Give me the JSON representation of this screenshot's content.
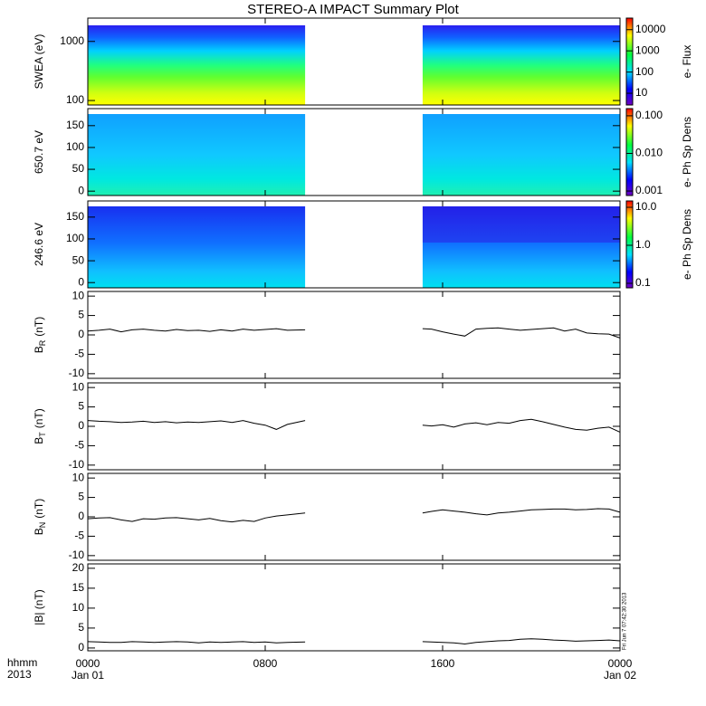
{
  "title": "STEREO-A IMPACT Summary Plot",
  "x_units": [
    "hhmm",
    "2013"
  ],
  "timestamp": "Fri Jun  7 07:42:30 2013",
  "chart_data": [
    {
      "type": "spectrogram",
      "ylabel": "SWEA (eV)",
      "log_y": true,
      "ylim": [
        84,
        2480
      ],
      "yticks": [
        100,
        1000
      ],
      "colorbar_label": "e- Flux",
      "clim": [
        2.8,
        35000
      ],
      "cticks": [
        10,
        100,
        1000,
        10000
      ]
    },
    {
      "type": "spectrogram",
      "ylabel": "650.7 eV",
      "log_y": false,
      "ylim": [
        -10,
        189
      ],
      "yticks": [
        0,
        50,
        100,
        150
      ],
      "colorbar_label": "e- Ph Sp Dens",
      "clim": [
        0.00076,
        0.155
      ],
      "cticks": [
        {
          "value": 0.001,
          "label": "0.001"
        },
        {
          "value": 0.01,
          "label": "0.010"
        },
        {
          "value": 0.1,
          "label": "0.100"
        }
      ]
    },
    {
      "type": "spectrogram",
      "ylabel": "246.6 eV",
      "log_y": false,
      "ylim": [
        -12,
        187
      ],
      "yticks": [
        0,
        50,
        100,
        150
      ],
      "colorbar_label": "e- Ph Sp Dens",
      "clim": [
        0.076,
        14.7
      ],
      "cticks": [
        {
          "value": 0.1,
          "label": "0.1"
        },
        {
          "value": 1,
          "label": "1.0"
        },
        {
          "value": 10,
          "label": "10.0"
        }
      ]
    },
    {
      "type": "line",
      "ylabel": "B",
      "ylabel_sub": "R",
      "ylabel_unit": "(nT)",
      "ylim": [
        -11.2,
        11.2
      ],
      "yticks": [
        -10,
        -5,
        0,
        5,
        10
      ],
      "x": [
        0,
        0.5,
        1,
        1.5,
        2,
        2.5,
        3,
        3.5,
        4,
        4.5,
        5,
        5.5,
        6,
        6.5,
        7,
        7.5,
        8,
        8.5,
        9,
        9.8,
        12,
        15.1,
        15.5,
        16,
        16.5,
        17,
        17.5,
        18,
        18.5,
        19,
        19.5,
        20,
        20.5,
        21,
        21.5,
        22,
        22.5,
        23,
        23.5,
        24
      ],
      "values": [
        1,
        1.2,
        1.5,
        0.8,
        1.3,
        1.5,
        1.2,
        1.0,
        1.4,
        1.1,
        1.2,
        0.9,
        1.3,
        1.0,
        1.5,
        1.2,
        1.4,
        1.6,
        1.2,
        1.3,
        null,
        1.6,
        1.5,
        0.8,
        0.2,
        -0.3,
        1.5,
        1.7,
        1.8,
        1.5,
        1.2,
        1.4,
        1.6,
        1.8,
        1.0,
        1.5,
        0.5,
        0.3,
        0.2,
        -0.8
      ]
    },
    {
      "type": "line",
      "ylabel": "B",
      "ylabel_sub": "T",
      "ylabel_unit": "(nT)",
      "ylim": [
        -11.2,
        11.2
      ],
      "yticks": [
        -10,
        -5,
        0,
        5,
        10
      ],
      "x": [
        0,
        0.5,
        1,
        1.5,
        2,
        2.5,
        3,
        3.5,
        4,
        4.5,
        5,
        5.5,
        6,
        6.5,
        7,
        7.5,
        8,
        8.5,
        9,
        9.8,
        12,
        15.1,
        15.5,
        16,
        16.5,
        17,
        17.5,
        18,
        18.5,
        19,
        19.5,
        20,
        20.5,
        21,
        21.5,
        22,
        22.5,
        23,
        23.5,
        24
      ],
      "values": [
        1.5,
        1.3,
        1.2,
        1.0,
        1.1,
        1.3,
        1.0,
        1.2,
        0.9,
        1.1,
        1.0,
        1.2,
        1.4,
        1.0,
        1.5,
        0.8,
        0.3,
        -0.8,
        0.5,
        1.5,
        null,
        0.3,
        0.1,
        0.4,
        -0.2,
        0.6,
        0.9,
        0.4,
        1.0,
        0.8,
        1.5,
        1.8,
        1.2,
        0.5,
        -0.2,
        -0.8,
        -1.0,
        -0.5,
        -0.2,
        -1.5
      ]
    },
    {
      "type": "line",
      "ylabel": "B",
      "ylabel_sub": "N",
      "ylabel_unit": "(nT)",
      "ylim": [
        -11.2,
        11.2
      ],
      "yticks": [
        -10,
        -5,
        0,
        5,
        10
      ],
      "x": [
        0,
        0.5,
        1,
        1.5,
        2,
        2.5,
        3,
        3.5,
        4,
        4.5,
        5,
        5.5,
        6,
        6.5,
        7,
        7.5,
        8,
        8.5,
        9,
        9.8,
        12,
        15.1,
        15.5,
        16,
        16.5,
        17,
        17.5,
        18,
        18.5,
        19,
        19.5,
        20,
        20.5,
        21,
        21.5,
        22,
        22.5,
        23,
        23.5,
        24
      ],
      "values": [
        -0.5,
        -0.3,
        -0.2,
        -0.8,
        -1.2,
        -0.5,
        -0.6,
        -0.3,
        -0.2,
        -0.5,
        -0.8,
        -0.4,
        -1.0,
        -1.3,
        -0.9,
        -1.2,
        -0.3,
        0.2,
        0.5,
        1.0,
        null,
        1.0,
        1.4,
        1.8,
        1.5,
        1.2,
        0.8,
        0.5,
        1.0,
        1.2,
        1.5,
        1.8,
        1.9,
        2.0,
        2.0,
        1.8,
        1.9,
        2.1,
        2.0,
        1.2
      ]
    },
    {
      "type": "line",
      "ylabel": "|B| (nT)",
      "ylim": [
        -0.7,
        21.1
      ],
      "yticks": [
        0,
        5,
        10,
        15,
        20
      ],
      "x": [
        0,
        0.5,
        1,
        1.5,
        2,
        2.5,
        3,
        3.5,
        4,
        4.5,
        5,
        5.5,
        6,
        6.5,
        7,
        7.5,
        8,
        8.5,
        9,
        9.8,
        12,
        15.1,
        15.5,
        16,
        16.5,
        17,
        17.5,
        18,
        18.5,
        19,
        19.5,
        20,
        20.5,
        21,
        21.5,
        22,
        22.5,
        23,
        23.5,
        24
      ],
      "values": [
        1.6,
        1.5,
        1.4,
        1.4,
        1.6,
        1.5,
        1.4,
        1.5,
        1.6,
        1.5,
        1.3,
        1.5,
        1.4,
        1.5,
        1.6,
        1.4,
        1.5,
        1.3,
        1.4,
        1.5,
        null,
        1.6,
        1.5,
        1.4,
        1.3,
        1.0,
        1.4,
        1.6,
        1.8,
        1.9,
        2.2,
        2.3,
        2.2,
        2.0,
        1.9,
        1.7,
        1.8,
        1.9,
        2.0,
        1.8
      ],
      "xlim": [
        0,
        24
      ],
      "xticks": [
        {
          "value": 0,
          "label": "0000"
        },
        {
          "value": 8,
          "label": "0800"
        },
        {
          "value": 16,
          "label": "1600"
        },
        {
          "value": 24,
          "label": "0000"
        }
      ],
      "x_dates": [
        "Jan 01",
        null,
        null,
        "Jan 02"
      ]
    }
  ]
}
